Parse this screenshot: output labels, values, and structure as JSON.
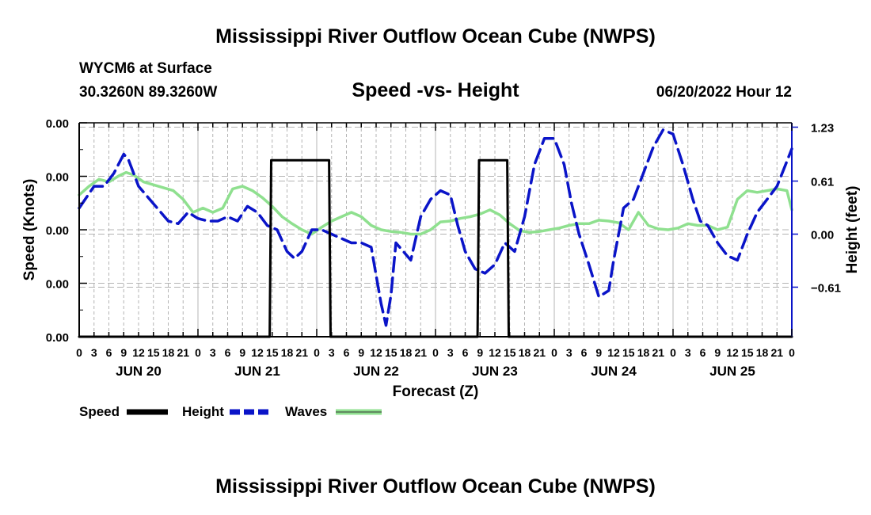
{
  "header": {
    "title": "Mississippi River Outflow Ocean Cube (NWPS)",
    "station": "WYCM6 at Surface",
    "coords": "30.3260N  89.3260W",
    "subtitle": "Speed -vs- Height",
    "datetime": "06/20/2022 Hour 12"
  },
  "footer": {
    "title": "Mississippi River Outflow Ocean Cube (NWPS)"
  },
  "chart_data": {
    "type": "line",
    "title": "Speed -vs- Height",
    "xlabel": "Forecast (Z)",
    "ylabel": "Speed (Knots)",
    "y2label": "Height (feet)",
    "xlim": [
      0,
      144
    ],
    "ylim": [
      0,
      4
    ],
    "y2lim": [
      -1.18,
      1.28
    ],
    "y_ticks": [
      "0.00",
      "0.00",
      "0.00",
      "0.00",
      "0.00"
    ],
    "y2_ticks": [
      1.23,
      0.61,
      0.0,
      -0.61
    ],
    "y2_tick_labels": [
      "1.23",
      "0.61",
      "0.00",
      "−0.61"
    ],
    "x_tick_labels": [
      "0",
      "3",
      "6",
      "9",
      "12",
      "15",
      "18",
      "21",
      "0",
      "3",
      "6",
      "9",
      "12",
      "15",
      "18",
      "21",
      "0",
      "3",
      "6",
      "9",
      "12",
      "15",
      "18",
      "21",
      "0",
      "3",
      "6",
      "9",
      "12",
      "15",
      "18",
      "21",
      "0",
      "3",
      "6",
      "9",
      "12",
      "15",
      "18",
      "21",
      "0",
      "3",
      "6",
      "9",
      "12",
      "15",
      "18",
      "21",
      "0"
    ],
    "day_labels": [
      "JUN 20",
      "JUN 21",
      "JUN 22",
      "JUN 23",
      "JUN 24",
      "JUN 25"
    ],
    "legend": [
      "Speed",
      "Height",
      "Waves"
    ],
    "colors": {
      "speed": "#000000",
      "height": "#0a14c8",
      "waves": "#8fe08f",
      "grid": "#b4b4b4"
    },
    "series": [
      {
        "name": "Speed",
        "axis": "left",
        "x": [
          0,
          38.5,
          38.8,
          50.5,
          50.8,
          80.5,
          80.8,
          86.5,
          86.8,
          144
        ],
        "values": [
          0,
          0,
          3.3,
          3.3,
          0,
          0,
          3.3,
          3.3,
          0,
          0
        ]
      },
      {
        "name": "Height",
        "axis": "right",
        "x": [
          0,
          3,
          5,
          7,
          9,
          10,
          12,
          15,
          18,
          20,
          22,
          24,
          26,
          28,
          30,
          32,
          34,
          36,
          38,
          40,
          42,
          43.5,
          45,
          47,
          49,
          51,
          53,
          55,
          57,
          59,
          61,
          62,
          63,
          64,
          65.5,
          67,
          69,
          71,
          73,
          75,
          76.5,
          78,
          80,
          82,
          84,
          86,
          88,
          90,
          92,
          94,
          96,
          98,
          99.5,
          101,
          103,
          105,
          107,
          108,
          110,
          112,
          114,
          116,
          118,
          120,
          122,
          124,
          125.5,
          127,
          129,
          131,
          133,
          135,
          137,
          139,
          141,
          144
        ],
        "values": [
          0.3,
          0.55,
          0.55,
          0.7,
          0.92,
          0.85,
          0.55,
          0.35,
          0.15,
          0.12,
          0.25,
          0.18,
          0.15,
          0.15,
          0.2,
          0.15,
          0.32,
          0.25,
          0.1,
          0.05,
          -0.2,
          -0.28,
          -0.2,
          0.05,
          0.05,
          0.0,
          -0.05,
          -0.1,
          -0.1,
          -0.15,
          -0.8,
          -1.05,
          -0.7,
          -0.1,
          -0.2,
          -0.3,
          0.2,
          0.4,
          0.5,
          0.45,
          0.1,
          -0.2,
          -0.4,
          -0.45,
          -0.35,
          -0.1,
          -0.2,
          0.2,
          0.8,
          1.1,
          1.1,
          0.8,
          0.35,
          0.0,
          -0.35,
          -0.72,
          -0.65,
          -0.3,
          0.3,
          0.4,
          0.7,
          1.0,
          1.2,
          1.15,
          0.8,
          0.4,
          0.15,
          0.1,
          -0.1,
          -0.25,
          -0.3,
          0.0,
          0.25,
          0.4,
          0.55,
          0.98
        ]
      },
      {
        "name": "Waves",
        "axis": "right",
        "x": [
          0,
          2,
          4,
          6,
          8,
          9.5,
          11,
          13,
          16,
          19,
          21,
          23,
          25,
          27,
          29,
          31,
          33,
          35,
          37,
          39,
          41,
          43,
          45,
          47,
          49,
          51,
          53,
          55,
          57,
          59,
          61,
          63,
          65,
          67,
          69,
          71,
          73,
          75,
          77,
          79,
          81,
          83,
          85,
          87,
          89,
          91,
          93,
          95,
          97,
          99,
          101,
          103,
          105,
          107,
          109,
          111,
          113,
          115,
          117,
          119,
          121,
          123,
          125,
          127,
          129,
          131,
          133,
          135,
          137,
          139,
          141,
          143,
          144
        ],
        "values": [
          0.45,
          0.55,
          0.63,
          0.6,
          0.67,
          0.71,
          0.68,
          0.6,
          0.55,
          0.5,
          0.4,
          0.25,
          0.3,
          0.25,
          0.3,
          0.52,
          0.55,
          0.5,
          0.42,
          0.32,
          0.2,
          0.12,
          0.05,
          0.0,
          0.08,
          0.15,
          0.2,
          0.25,
          0.2,
          0.1,
          0.05,
          0.03,
          0.02,
          0.0,
          0.0,
          0.05,
          0.14,
          0.15,
          0.18,
          0.2,
          0.23,
          0.28,
          0.22,
          0.12,
          0.04,
          0.02,
          0.03,
          0.05,
          0.07,
          0.1,
          0.12,
          0.12,
          0.16,
          0.15,
          0.13,
          0.05,
          0.25,
          0.1,
          0.06,
          0.05,
          0.07,
          0.12,
          0.1,
          0.1,
          0.05,
          0.08,
          0.4,
          0.5,
          0.48,
          0.5,
          0.52,
          0.5,
          0.28
        ]
      }
    ]
  }
}
